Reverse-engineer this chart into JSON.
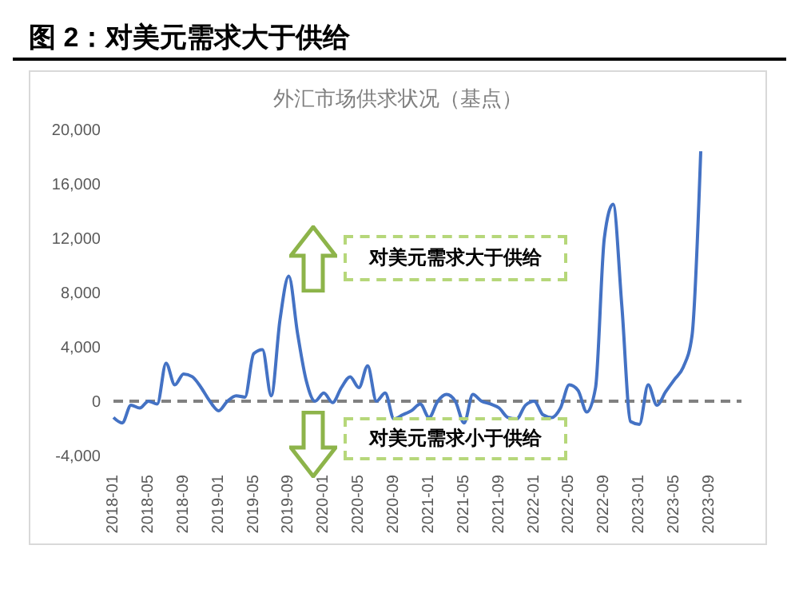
{
  "chart_data": {
    "type": "line",
    "title": "图 2：对美元需求大于供给",
    "subtitle": "外汇市场供求状况（基点）",
    "categories": [
      "2018-01",
      null,
      null,
      null,
      "2018-05",
      null,
      null,
      null,
      "2018-09",
      null,
      null,
      null,
      "2019-01",
      null,
      null,
      null,
      "2019-05",
      null,
      null,
      null,
      "2019-09",
      null,
      null,
      null,
      "2020-01",
      null,
      null,
      null,
      "2020-05",
      null,
      null,
      null,
      "2020-09",
      null,
      null,
      null,
      "2021-01",
      null,
      null,
      null,
      "2021-05",
      null,
      null,
      null,
      "2021-09",
      null,
      null,
      null,
      "2022-01",
      null,
      null,
      null,
      "2022-05",
      null,
      null,
      null,
      "2022-09",
      null,
      null,
      null,
      "2023-01",
      null,
      null,
      null,
      "2023-05",
      null,
      null,
      null,
      "2023-09"
    ],
    "series": [
      {
        "color": "#4472c4",
        "values": [
          -1200,
          -1600,
          -300,
          -500,
          0,
          -200,
          2800,
          1200,
          2000,
          1800,
          1000,
          0,
          -700,
          0,
          400,
          300,
          3500,
          3800,
          400,
          6000,
          9200,
          5000,
          1500,
          0,
          600,
          -100,
          1000,
          1800,
          1000,
          2600,
          0,
          600,
          -1300,
          -1000,
          -700,
          -200,
          -1200,
          0,
          500,
          0,
          -1600,
          500,
          0,
          -200,
          -500,
          -1200,
          -1300,
          -300,
          0,
          -1000,
          -1200,
          -500,
          1200,
          800,
          -800,
          1000,
          12000,
          14500,
          7000,
          -1500,
          -1700,
          1200,
          -300,
          700,
          1600,
          2500,
          4800,
          18400,
          null
        ]
      }
    ],
    "ylim": [
      -4000,
      20000
    ],
    "yticks": [
      {
        "value": -4000,
        "label": "-4,000"
      },
      {
        "value": 0,
        "label": "0"
      },
      {
        "value": 4000,
        "label": "4,000"
      },
      {
        "value": 8000,
        "label": "8,000"
      },
      {
        "value": 12000,
        "label": "12,000"
      },
      {
        "value": 16000,
        "label": "16,000"
      },
      {
        "value": 20000,
        "label": "20,000"
      }
    ],
    "ref_lines": [
      {
        "axis": "y",
        "value": 0,
        "color": "#808080",
        "line_style": "dashed"
      }
    ],
    "annotations": [
      "对美元需求大于供给",
      "对美元需求小于供给"
    ],
    "grid": false,
    "legend": false,
    "marker": "none",
    "line_style": "solid"
  }
}
